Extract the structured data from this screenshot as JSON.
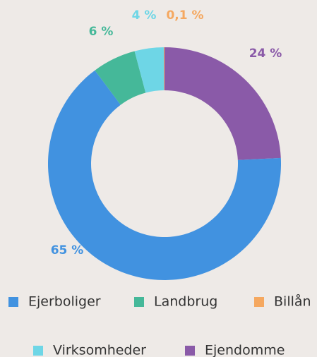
{
  "chart_data": {
    "type": "donut",
    "categories": [
      "Ejendomme",
      "Ejerboliger",
      "Landbrug",
      "Virksomheder",
      "Billån"
    ],
    "values": [
      24,
      65,
      6,
      4,
      0.1
    ],
    "value_labels": [
      "24 %",
      "65 %",
      "6 %",
      "4 %",
      "0,1 %"
    ],
    "colors": [
      "#8a5aa8",
      "#4192e0",
      "#45b899",
      "#6ed6e6",
      "#f5a860"
    ]
  }
}
